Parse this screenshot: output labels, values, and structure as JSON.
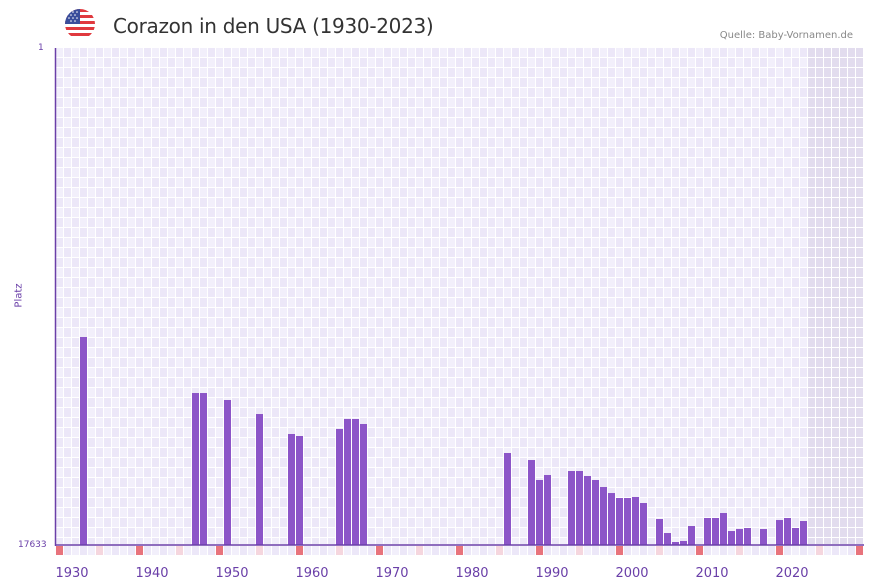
{
  "header": {
    "title": "Corazon in den USA (1930-2023)",
    "source": "Quelle: Baby-Vornamen.de",
    "flag_icon": "us-flag-icon"
  },
  "colors": {
    "bar": "#8c55c8",
    "axis": "#6a3fa8",
    "grid_bg_a": "#f2effb",
    "grid_bg_b": "#ece7f8",
    "future_bg": "#e2dcee",
    "decade_marker": "#e8737c",
    "half_decade_marker": "#f5d6de"
  },
  "chart_data": {
    "type": "bar",
    "title": "Corazon in den USA (1930-2023)",
    "xlabel": "",
    "ylabel": "Platz",
    "ylim": [
      1,
      17633
    ],
    "y_inverted": true,
    "y_tick_labels": [
      "1",
      "17633"
    ],
    "xlim": [
      1930,
      2030
    ],
    "x_tick_labels": [
      "1930",
      "1940",
      "1950",
      "1960",
      "1970",
      "1980",
      "1990",
      "2000",
      "2010",
      "2020"
    ],
    "future_shaded_from": 2024,
    "grid": true,
    "series": [
      {
        "name": "Platz",
        "x": [
          1933,
          1947,
          1948,
          1951,
          1955,
          1959,
          1960,
          1965,
          1966,
          1967,
          1968,
          1986,
          1989,
          1990,
          1991,
          1994,
          1995,
          1996,
          1997,
          1998,
          1999,
          2000,
          2001,
          2002,
          2003,
          2005,
          2006,
          2007,
          2008,
          2009,
          2011,
          2012,
          2013,
          2014,
          2015,
          2016,
          2018,
          2020,
          2021,
          2022,
          2023
        ],
        "values": [
          10254,
          12241,
          12241,
          12489,
          12986,
          13695,
          13766,
          13518,
          13163,
          13163,
          13340,
          14369,
          14618,
          15327,
          15150,
          15008,
          15008,
          15185,
          15327,
          15576,
          15789,
          15966,
          15966,
          15930,
          16143,
          16711,
          17208,
          17527,
          17491,
          16959,
          16675,
          16675,
          16498,
          17137,
          17066,
          17030,
          17066,
          16747,
          16675,
          17030,
          16782
        ]
      }
    ]
  }
}
